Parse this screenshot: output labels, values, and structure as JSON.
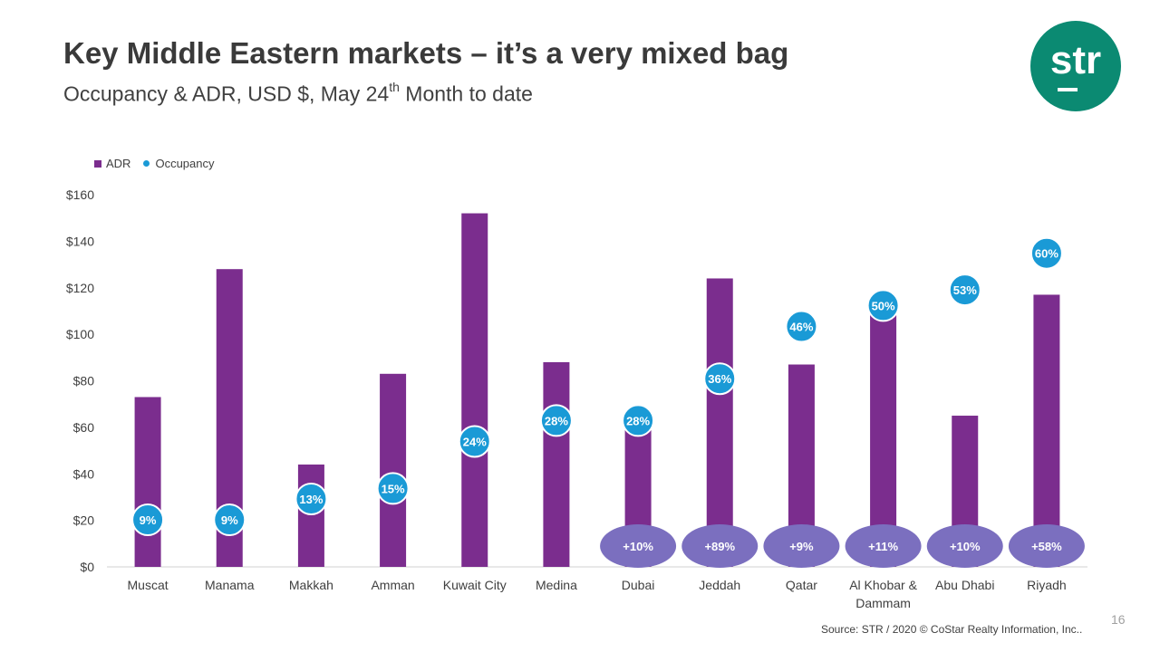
{
  "slide": {
    "title": "Key Middle Eastern markets – it’s a very mixed bag",
    "subtitle_pre": "Occupancy & ADR, USD $, May 24",
    "subtitle_sup": "th",
    "subtitle_post": " Month to date",
    "logo_text": "str",
    "source": "Source: STR / 2020 © CoStar Realty Information, Inc..",
    "page_number": "16"
  },
  "colors": {
    "adr_bar": "#7b2d8e",
    "occupancy_dot": "#1a9ad6",
    "change_ellipse": "#7b6fbf",
    "logo": "#0b8a72"
  },
  "chart_data": {
    "type": "bar",
    "categories": [
      "Muscat",
      "Manama",
      "Makkah",
      "Amman",
      "Kuwait City",
      "Medina",
      "Dubai",
      "Jeddah",
      "Qatar",
      "Al Khobar & Dammam",
      "Abu Dhabi",
      "Riyadh"
    ],
    "category_lines": [
      [
        "Muscat"
      ],
      [
        "Manama"
      ],
      [
        "Makkah"
      ],
      [
        "Amman"
      ],
      [
        "Kuwait City"
      ],
      [
        "Medina"
      ],
      [
        "Dubai"
      ],
      [
        "Jeddah"
      ],
      [
        "Qatar"
      ],
      [
        "Al Khobar &",
        "Dammam"
      ],
      [
        "Abu Dhabi"
      ],
      [
        "Riyadh"
      ]
    ],
    "series": [
      {
        "name": "ADR",
        "type": "bar",
        "values": [
          73,
          128,
          44,
          83,
          152,
          88,
          64,
          124,
          87,
          114,
          65,
          117
        ]
      },
      {
        "name": "Occupancy",
        "type": "scatter",
        "values": [
          9,
          9,
          13,
          15,
          24,
          28,
          28,
          36,
          46,
          50,
          53,
          60
        ],
        "labels": [
          "9%",
          "9%",
          "13%",
          "15%",
          "24%",
          "28%",
          "28%",
          "36%",
          "46%",
          "50%",
          "53%",
          "60%"
        ]
      }
    ],
    "change_labels": [
      "",
      "",
      "",
      "",
      "",
      "",
      "+10%",
      "+89%",
      "+9%",
      "+11%",
      "+10%",
      "+58%"
    ],
    "yticks": [
      "$0",
      "$20",
      "$40",
      "$60",
      "$80",
      "$100",
      "$120",
      "$140",
      "$160"
    ],
    "ylim": [
      0,
      160
    ],
    "legend_position": "top-left",
    "grid": false
  }
}
